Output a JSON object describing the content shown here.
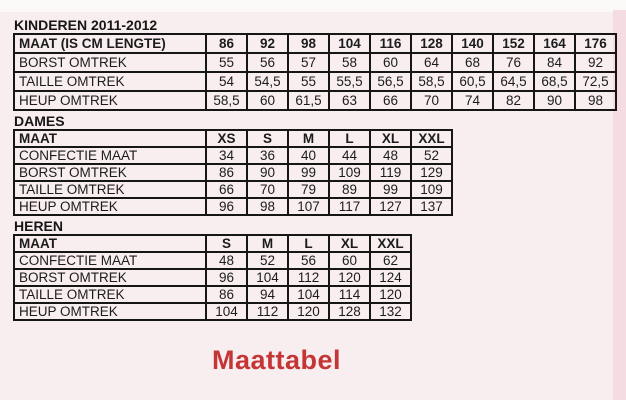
{
  "page": {
    "background_color": "#f8edef",
    "border_color": "#161616",
    "accent_color": "#c43636"
  },
  "footer_title": {
    "label": "Maattabel"
  },
  "sections": [
    {
      "id": "kinderen",
      "heading": "KINDEREN 2011-2012",
      "header_label": "MAAT (IS CM LENGTE)",
      "columns": [
        "86",
        "92",
        "98",
        "104",
        "116",
        "128",
        "140",
        "152",
        "164",
        "176"
      ],
      "rows": [
        {
          "label": "BORST OMTREK",
          "values": [
            "55",
            "56",
            "57",
            "58",
            "60",
            "64",
            "68",
            "76",
            "84",
            "92"
          ]
        },
        {
          "label": "TAILLE OMTREK",
          "values": [
            "54",
            "54,5",
            "55",
            "55,5",
            "56,5",
            "58,5",
            "60,5",
            "64,5",
            "68,5",
            "72,5"
          ]
        },
        {
          "label": "HEUP OMTREK",
          "values": [
            "58,5",
            "60",
            "61,5",
            "63",
            "66",
            "70",
            "74",
            "82",
            "90",
            "98"
          ]
        }
      ]
    },
    {
      "id": "dames",
      "heading": "DAMES",
      "header_label": "MAAT",
      "columns": [
        "XS",
        "S",
        "M",
        "L",
        "XL",
        "XXL"
      ],
      "rows": [
        {
          "label": "CONFECTIE MAAT",
          "values": [
            "34",
            "36",
            "40",
            "44",
            "48",
            "52"
          ]
        },
        {
          "label": "BORST OMTREK",
          "values": [
            "86",
            "90",
            "99",
            "109",
            "119",
            "129"
          ]
        },
        {
          "label": "TAILLE OMTREK",
          "values": [
            "66",
            "70",
            "79",
            "89",
            "99",
            "109"
          ]
        },
        {
          "label": "HEUP OMTREK",
          "values": [
            "96",
            "98",
            "107",
            "117",
            "127",
            "137"
          ]
        }
      ]
    },
    {
      "id": "heren",
      "heading": "HEREN",
      "header_label": "MAAT",
      "columns": [
        "S",
        "M",
        "L",
        "XL",
        "XXL"
      ],
      "rows": [
        {
          "label": "CONFECTIE MAAT",
          "values": [
            "48",
            "52",
            "56",
            "60",
            "62"
          ]
        },
        {
          "label": "BORST OMTREK",
          "values": [
            "96",
            "104",
            "112",
            "120",
            "124"
          ]
        },
        {
          "label": "TAILLE OMTREK",
          "values": [
            "86",
            "94",
            "104",
            "114",
            "120"
          ]
        },
        {
          "label": "HEUP OMTREK",
          "values": [
            "104",
            "112",
            "120",
            "128",
            "132"
          ]
        }
      ]
    }
  ]
}
